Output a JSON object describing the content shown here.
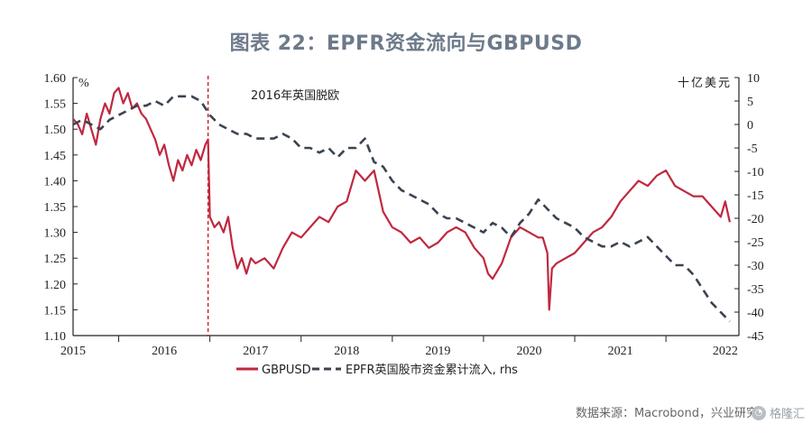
{
  "title": "图表 22：EPFR资金流向与GBPUSD",
  "source": "数据来源：Macrobond，兴业研究",
  "watermark": "格隆汇",
  "colors": {
    "gbpusd": "#c0283f",
    "epfr": "#3a4350",
    "event_line": "#d0202f",
    "title": "#6d7a8a"
  },
  "chart_data": {
    "type": "line",
    "title": "图表 22：EPFR资金流向与GBPUSD",
    "left_axis_unit": "%",
    "right_axis_unit": "十亿美元",
    "ylim_left": [
      1.1,
      1.6
    ],
    "ylim_right": [
      -45,
      10
    ],
    "yticks_left": [
      "1.60",
      "1.55",
      "1.50",
      "1.45",
      "1.40",
      "1.35",
      "1.30",
      "1.25",
      "1.20",
      "1.15",
      "1.10"
    ],
    "yticks_right": [
      "10",
      "5",
      "0",
      "-5",
      "-10",
      "-15",
      "-20",
      "-25",
      "-30",
      "-35",
      "-40",
      "-45"
    ],
    "xlim": [
      2015.0,
      2022.3
    ],
    "x_ticks": [
      "2015",
      "2016",
      "2017",
      "2018",
      "2019",
      "2020",
      "2021",
      "2022"
    ],
    "grid": false,
    "legend_position": "bottom-center",
    "annotation": {
      "text": "2016年英国脱欧",
      "x": 2016.48
    },
    "series": [
      {
        "name": "GBPUSD",
        "axis": "left",
        "style": "solid",
        "x": [
          2015.0,
          2015.05,
          2015.1,
          2015.15,
          2015.2,
          2015.25,
          2015.3,
          2015.35,
          2015.4,
          2015.45,
          2015.5,
          2015.55,
          2015.6,
          2015.65,
          2015.7,
          2015.75,
          2015.8,
          2015.85,
          2015.9,
          2015.95,
          2016.0,
          2016.05,
          2016.1,
          2016.15,
          2016.2,
          2016.25,
          2016.3,
          2016.35,
          2016.4,
          2016.45,
          2016.48,
          2016.5,
          2016.55,
          2016.6,
          2016.65,
          2016.7,
          2016.75,
          2016.8,
          2016.85,
          2016.9,
          2016.95,
          2017.0,
          2017.1,
          2017.2,
          2017.3,
          2017.4,
          2017.5,
          2017.6,
          2017.7,
          2017.8,
          2017.9,
          2018.0,
          2018.1,
          2018.2,
          2018.3,
          2018.4,
          2018.5,
          2018.6,
          2018.7,
          2018.8,
          2018.9,
          2019.0,
          2019.1,
          2019.2,
          2019.3,
          2019.4,
          2019.5,
          2019.55,
          2019.6,
          2019.7,
          2019.8,
          2019.9,
          2020.0,
          2020.1,
          2020.15,
          2020.2,
          2020.22,
          2020.25,
          2020.3,
          2020.4,
          2020.5,
          2020.6,
          2020.7,
          2020.8,
          2020.9,
          2021.0,
          2021.1,
          2021.2,
          2021.3,
          2021.4,
          2021.5,
          2021.6,
          2021.7,
          2021.8,
          2021.9,
          2022.0,
          2022.1,
          2022.15,
          2022.2
        ],
        "y": [
          1.52,
          1.51,
          1.49,
          1.53,
          1.5,
          1.47,
          1.52,
          1.55,
          1.53,
          1.57,
          1.58,
          1.55,
          1.57,
          1.54,
          1.55,
          1.53,
          1.52,
          1.5,
          1.48,
          1.45,
          1.47,
          1.43,
          1.4,
          1.44,
          1.42,
          1.45,
          1.43,
          1.46,
          1.44,
          1.47,
          1.48,
          1.33,
          1.31,
          1.32,
          1.3,
          1.33,
          1.27,
          1.23,
          1.25,
          1.22,
          1.25,
          1.24,
          1.25,
          1.23,
          1.27,
          1.3,
          1.29,
          1.31,
          1.33,
          1.32,
          1.35,
          1.36,
          1.42,
          1.4,
          1.42,
          1.34,
          1.31,
          1.3,
          1.28,
          1.29,
          1.27,
          1.28,
          1.3,
          1.31,
          1.3,
          1.27,
          1.25,
          1.22,
          1.21,
          1.24,
          1.29,
          1.31,
          1.3,
          1.29,
          1.29,
          1.26,
          1.15,
          1.23,
          1.24,
          1.25,
          1.26,
          1.28,
          1.3,
          1.31,
          1.33,
          1.36,
          1.38,
          1.4,
          1.39,
          1.41,
          1.42,
          1.39,
          1.38,
          1.37,
          1.37,
          1.35,
          1.33,
          1.36,
          1.32
        ]
      },
      {
        "name": "EPFR英国股市资金累计流入, rhs",
        "axis": "right",
        "style": "dashed",
        "x": [
          2015.0,
          2015.1,
          2015.2,
          2015.3,
          2015.4,
          2015.5,
          2015.6,
          2015.7,
          2015.8,
          2015.9,
          2016.0,
          2016.1,
          2016.2,
          2016.3,
          2016.4,
          2016.5,
          2016.6,
          2016.7,
          2016.8,
          2016.9,
          2017.0,
          2017.1,
          2017.2,
          2017.3,
          2017.4,
          2017.5,
          2017.6,
          2017.7,
          2017.8,
          2017.9,
          2018.0,
          2018.1,
          2018.2,
          2018.3,
          2018.4,
          2018.5,
          2018.6,
          2018.7,
          2018.8,
          2018.9,
          2019.0,
          2019.1,
          2019.2,
          2019.3,
          2019.4,
          2019.5,
          2019.6,
          2019.7,
          2019.8,
          2019.9,
          2020.0,
          2020.1,
          2020.2,
          2020.3,
          2020.4,
          2020.5,
          2020.6,
          2020.7,
          2020.8,
          2020.9,
          2021.0,
          2021.1,
          2021.2,
          2021.3,
          2021.4,
          2021.5,
          2021.6,
          2021.7,
          2021.8,
          2021.9,
          2022.0,
          2022.1,
          2022.2
        ],
        "y": [
          0,
          1,
          0,
          -1,
          1,
          2,
          3,
          4,
          4,
          5,
          4,
          6,
          6,
          6,
          5,
          2,
          0,
          -1,
          -2,
          -2,
          -3,
          -3,
          -3,
          -2,
          -3,
          -5,
          -5,
          -6,
          -5,
          -7,
          -5,
          -5,
          -3,
          -8,
          -9,
          -12,
          -14,
          -15,
          -16,
          -17,
          -19,
          -20,
          -20,
          -21,
          -22,
          -23,
          -21,
          -22,
          -24,
          -21,
          -19,
          -16,
          -18,
          -20,
          -21,
          -22,
          -24,
          -25,
          -26,
          -26,
          -25,
          -26,
          -25,
          -24,
          -26,
          -28,
          -30,
          -30,
          -32,
          -35,
          -38,
          -40,
          -42
        ]
      }
    ]
  }
}
